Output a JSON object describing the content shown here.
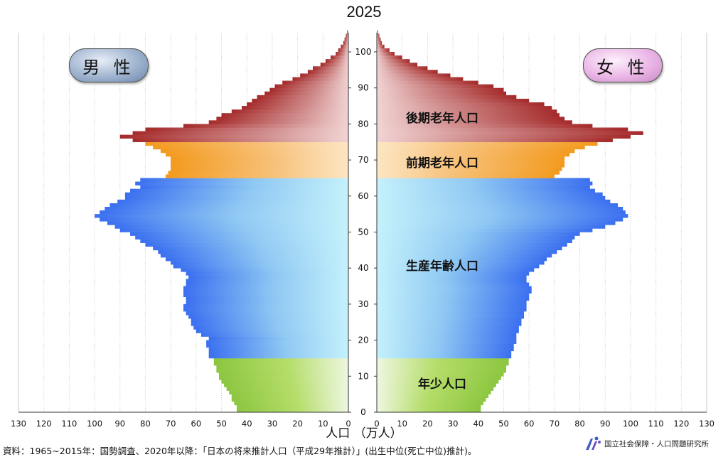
{
  "chart_data": {
    "type": "bar",
    "orientation": "horizontal-pyramid",
    "title": "2025",
    "xlabel": "人口 （万人）",
    "ylabel": "",
    "xlim": [
      0,
      130
    ],
    "ylim": [
      0,
      105
    ],
    "x_ticks": [
      130,
      120,
      110,
      100,
      90,
      80,
      70,
      60,
      50,
      40,
      30,
      20,
      10,
      0
    ],
    "y_ticks": [
      0,
      10,
      20,
      30,
      40,
      50,
      60,
      70,
      80,
      90,
      100
    ],
    "grid": true,
    "age_groups": [
      {
        "label": "年少人口",
        "from": 0,
        "to": 14,
        "color": "#8cc63f"
      },
      {
        "label": "生産年齢人口",
        "from": 15,
        "to": 64,
        "color": "#3a6ff0"
      },
      {
        "label": "前期老年人口",
        "from": 65,
        "to": 74,
        "color": "#f39a1e"
      },
      {
        "label": "後期老年人口",
        "from": 75,
        "to": 105,
        "color": "#a52a2a"
      }
    ],
    "ages": [
      0,
      1,
      2,
      3,
      4,
      5,
      6,
      7,
      8,
      9,
      10,
      11,
      12,
      13,
      14,
      15,
      16,
      17,
      18,
      19,
      20,
      21,
      22,
      23,
      24,
      25,
      26,
      27,
      28,
      29,
      30,
      31,
      32,
      33,
      34,
      35,
      36,
      37,
      38,
      39,
      40,
      41,
      42,
      43,
      44,
      45,
      46,
      47,
      48,
      49,
      50,
      51,
      52,
      53,
      54,
      55,
      56,
      57,
      58,
      59,
      60,
      61,
      62,
      63,
      64,
      65,
      66,
      67,
      68,
      69,
      70,
      71,
      72,
      73,
      74,
      75,
      76,
      77,
      78,
      79,
      80,
      81,
      82,
      83,
      84,
      85,
      86,
      87,
      88,
      89,
      90,
      91,
      92,
      93,
      94,
      95,
      96,
      97,
      98,
      99,
      100,
      101,
      102,
      103,
      104,
      105
    ],
    "series": [
      {
        "name": "男性",
        "values": [
          44,
          44,
          45,
          46,
          46,
          47,
          48,
          49,
          50,
          51,
          51,
          52,
          52,
          53,
          53,
          55,
          55,
          55,
          56,
          56,
          55,
          58,
          60,
          61,
          62,
          62,
          63,
          64,
          65,
          65,
          64,
          64,
          65,
          65,
          65,
          64,
          64,
          63,
          64,
          66,
          69,
          70,
          72,
          74,
          75,
          77,
          80,
          82,
          84,
          86,
          90,
          92,
          95,
          98,
          100,
          98,
          96,
          94,
          91,
          88,
          88,
          86,
          82,
          84,
          82,
          72,
          71,
          70,
          70,
          70,
          70,
          72,
          74,
          77,
          80,
          85,
          90,
          85,
          80,
          65,
          55,
          52,
          50,
          46,
          42,
          40,
          38,
          36,
          33,
          31,
          29,
          26,
          22,
          19,
          16,
          14,
          11,
          9,
          7,
          5,
          4,
          3,
          2,
          1.5,
          1,
          0.5
        ]
      },
      {
        "name": "女性",
        "values": [
          41,
          41,
          42,
          43,
          44,
          45,
          46,
          47,
          48,
          49,
          50,
          51,
          51,
          52,
          52,
          53,
          53,
          54,
          54,
          55,
          55,
          55,
          56,
          56,
          57,
          57,
          58,
          58,
          59,
          59,
          59,
          60,
          60,
          61,
          61,
          60,
          59,
          59,
          60,
          62,
          64,
          66,
          67,
          69,
          71,
          73,
          75,
          77,
          78,
          80,
          85,
          90,
          94,
          97,
          99,
          98,
          97,
          95,
          92,
          90,
          89,
          86,
          84,
          85,
          84,
          70,
          72,
          73,
          74,
          74,
          74,
          76,
          78,
          82,
          87,
          93,
          100,
          105,
          99,
          85,
          77,
          74,
          72,
          71,
          69,
          66,
          60,
          55,
          51,
          50,
          46,
          40,
          34,
          29,
          24,
          20,
          16,
          13,
          10,
          7,
          5,
          3,
          2,
          1.5,
          1,
          0.5
        ]
      }
    ]
  },
  "labels": {
    "male": "男 性",
    "female": "女 性",
    "source": "資料：1965~2015年：国勢調査、2020年以降：「日本の将来推計人口（平成29年推計）」(出生中位(死亡中位)推計)。",
    "institute": "国立社会保障・人口問題研究所"
  }
}
